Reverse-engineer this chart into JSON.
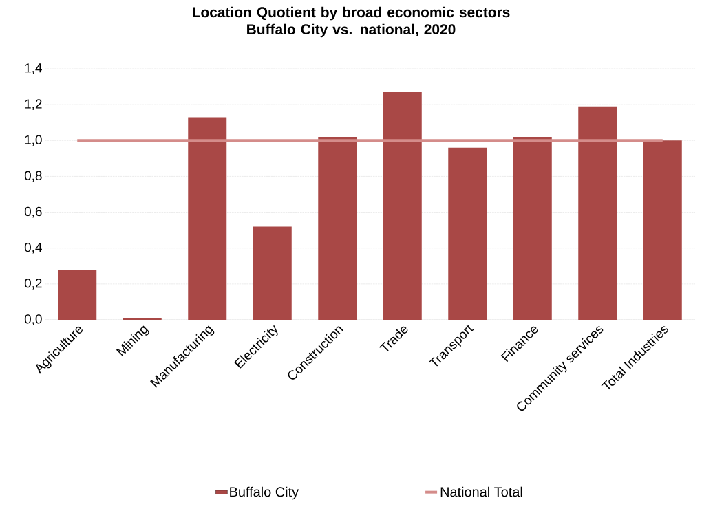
{
  "chart_data": {
    "type": "bar",
    "title": "Location Quotient by broad economic sectors\nBuffalo City vs. national, 2020",
    "categories": [
      "Agriculture",
      "Mining",
      "Manufacturing",
      "Electricity",
      "Construction",
      "Trade",
      "Transport",
      "Finance",
      "Community services",
      "Total Industries"
    ],
    "series": [
      {
        "name": "Buffalo City",
        "type": "bar",
        "color": "#a94846",
        "values": [
          0.28,
          0.01,
          1.13,
          0.52,
          1.02,
          1.27,
          0.96,
          1.02,
          1.19,
          1.0
        ]
      },
      {
        "name": "National Total",
        "type": "line",
        "color": "#d48c8a",
        "values": [
          1,
          1,
          1,
          1,
          1,
          1,
          1,
          1,
          1,
          1
        ]
      }
    ],
    "ylim": [
      0,
      1.4
    ],
    "yticks": [
      {
        "value": 0,
        "label": "0,0"
      },
      {
        "value": 0.2,
        "label": "0,2"
      },
      {
        "value": 0.4,
        "label": "0,4"
      },
      {
        "value": 0.6,
        "label": "0,6"
      },
      {
        "value": 0.8,
        "label": "0,8"
      },
      {
        "value": 1.0,
        "label": "1,0"
      },
      {
        "value": 1.2,
        "label": "1,2"
      },
      {
        "value": 1.4,
        "label": "1,4"
      }
    ],
    "grid": "y",
    "legend": "bottom",
    "marker": "none"
  }
}
